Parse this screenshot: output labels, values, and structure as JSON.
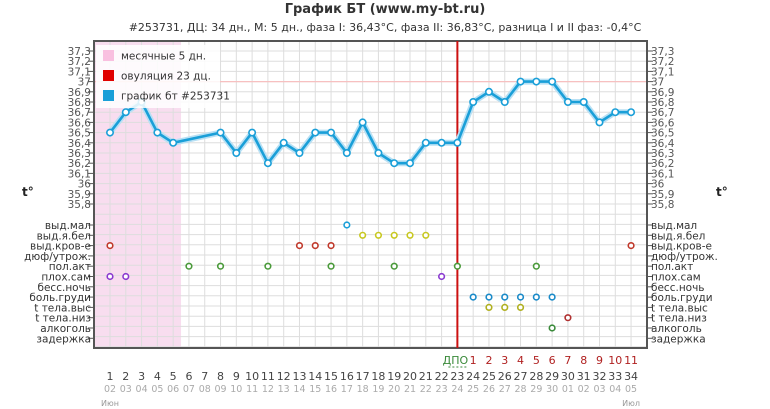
{
  "chart_data": {
    "type": "line",
    "title": "График БТ (www.my-bt.ru)",
    "subtitle": "#253731, ДЦ: 34 дн., М: 5 дн., фаза I: 36,43°C, фаза II: 36,83°C, разница I и II фаз: -0,4°C",
    "ylabel": "t°",
    "ylim": [
      35.8,
      37.3
    ],
    "yticks": [
      "37,3",
      "37,2",
      "37,1",
      "37",
      "36,9",
      "36,8",
      "36,7",
      "36,6",
      "36,5",
      "36,4",
      "36,3",
      "36,2",
      "36,1",
      "36",
      "35,9",
      "35,8"
    ],
    "grid": true,
    "legend_placement": "top-left",
    "legend": [
      {
        "label": "месячные 5 дн.",
        "color": "#f9c0e0"
      },
      {
        "label": "овуляция 23 дц.",
        "color": "#e00000"
      },
      {
        "label": "график бт #253731",
        "color": "#1a9fd8"
      }
    ],
    "menstruation_days": 5,
    "ovulation_day": 23,
    "reference_line": 37.0,
    "series": [
      {
        "color": "#1a9fd8",
        "x": [
          1,
          2,
          3,
          4,
          5,
          8,
          9,
          10,
          11,
          12,
          13,
          14,
          15,
          16,
          17,
          18,
          19,
          20,
          21,
          22,
          23,
          24,
          25,
          26,
          27,
          28,
          29,
          30,
          31,
          32,
          33,
          34
        ],
        "values": [
          36.5,
          36.7,
          36.8,
          36.5,
          36.4,
          36.5,
          36.3,
          36.5,
          36.2,
          36.4,
          36.3,
          36.5,
          36.5,
          36.3,
          36.6,
          36.3,
          36.2,
          36.2,
          36.4,
          36.4,
          36.4,
          36.8,
          36.9,
          36.8,
          37.0,
          37.0,
          37.0,
          36.8,
          36.8,
          36.6,
          36.7,
          36.7
        ]
      }
    ],
    "symptoms": [
      {
        "label": "выд.мал",
        "color": "#1a9fd8",
        "days": [
          16
        ]
      },
      {
        "label": "выд.я.бел",
        "color": "#c8c820",
        "days": [
          17,
          18,
          19,
          20,
          21
        ]
      },
      {
        "label": "выд.кров-е",
        "color": "#c0392b",
        "days": [
          1,
          13,
          14,
          15,
          34
        ]
      },
      {
        "label": "дюф/утрож.",
        "color": "#888",
        "days": []
      },
      {
        "label": "пол.акт",
        "color": "#4a9a3a",
        "days": [
          6,
          8,
          11,
          15,
          19,
          23,
          28
        ]
      },
      {
        "label": "плох.сам",
        "color": "#8a3ad0",
        "days": [
          1,
          2,
          22
        ]
      },
      {
        "label": "бесс.ночь",
        "color": "#888",
        "days": []
      },
      {
        "label": "боль.груди",
        "color": "#1a8ac8",
        "days": [
          24,
          25,
          26,
          27,
          28,
          29
        ]
      },
      {
        "label": "t тела.выс",
        "color": "#b0b020",
        "days": [
          25,
          26,
          27
        ]
      },
      {
        "label": "t тела.низ",
        "color": "#b03030",
        "days": [
          30
        ]
      },
      {
        "label": "алкоголь",
        "color": "#3a8a3a",
        "days": [
          29
        ]
      },
      {
        "label": "задержка",
        "color": "#888",
        "days": []
      }
    ],
    "days": [
      1,
      2,
      3,
      4,
      5,
      6,
      7,
      8,
      9,
      10,
      11,
      12,
      13,
      14,
      15,
      16,
      17,
      18,
      19,
      20,
      21,
      22,
      23,
      24,
      25,
      26,
      27,
      28,
      29,
      30,
      31,
      32,
      33,
      34
    ],
    "dates": [
      "02",
      "03",
      "04",
      "05",
      "06",
      "07",
      "08",
      "09",
      "10",
      "11",
      "12",
      "13",
      "14",
      "15",
      "16",
      "17",
      "18",
      "19",
      "20",
      "21",
      "22",
      "23",
      "24",
      "25",
      "26",
      "27",
      "28",
      "29",
      "30",
      "01",
      "02",
      "03",
      "04",
      "05"
    ],
    "dpo_label": "ДПО",
    "dpo": [
      "1",
      "2",
      "3",
      "4",
      "5",
      "6",
      "7",
      "8",
      "9",
      "10",
      "11"
    ],
    "months": [
      {
        "label": "Июн",
        "day": 1
      },
      {
        "label": "Июл",
        "day": 34
      }
    ]
  }
}
